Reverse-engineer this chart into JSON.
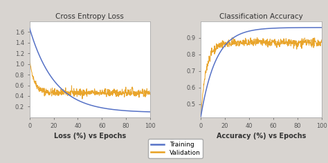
{
  "title_loss": "Cross Entropy Loss",
  "title_acc": "Classification Accuracy",
  "xlabel_loss": "Loss (%) vs Epochs",
  "xlabel_acc": "Accuracy (%) vs Epochs",
  "color_training": "#5571c6",
  "color_validation": "#e8a020",
  "legend_labels": [
    "Training",
    "Validation"
  ],
  "epochs": 100,
  "loss_train_start": 1.67,
  "loss_train_end": 0.09,
  "loss_val_start": 1.08,
  "loss_val_plateau": 0.46,
  "acc_train_start": 0.425,
  "acc_train_end": 0.962,
  "acc_val_plateau": 0.87,
  "ylim_loss": [
    0.0,
    1.8
  ],
  "ylim_acc": [
    0.42,
    1.0
  ],
  "yticks_loss": [
    0.2,
    0.4,
    0.6,
    0.8,
    1.0,
    1.2,
    1.4,
    1.6
  ],
  "yticks_acc": [
    0.5,
    0.6,
    0.7,
    0.8,
    0.9
  ],
  "xticks": [
    0,
    20,
    40,
    60,
    80,
    100
  ],
  "plot_bg": "#ffffff",
  "fig_bg": "#d8d4d0",
  "spine_color": "#aaaaaa",
  "tick_color": "#555555",
  "title_fontsize": 7.5,
  "xlabel_fontsize": 7,
  "tick_fontsize": 6,
  "legend_fontsize": 6.5
}
